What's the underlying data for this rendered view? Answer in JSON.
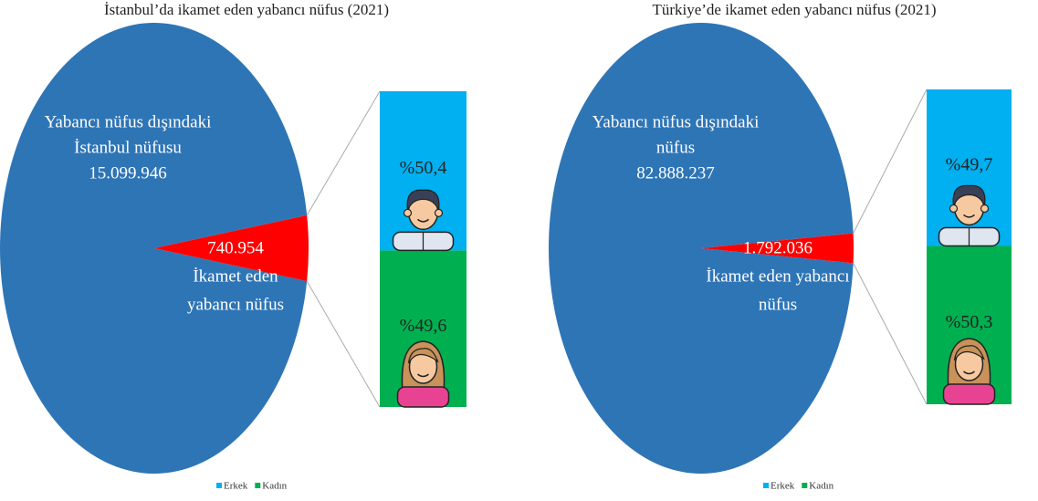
{
  "chart_data": [
    {
      "type": "pie",
      "title": "İstanbul’da ikamet eden yabancı nüfus (2021)",
      "labels": [
        [
          "Yabancı nüfus dışındaki",
          "İstanbul nüfusu"
        ],
        [
          "İkamet eden",
          "yabancı nüfus"
        ]
      ],
      "values": [
        15099946,
        740954
      ],
      "value_labels": [
        "15.099.946",
        "740.954"
      ],
      "colors": [
        "#2e75b6",
        "#ff0000"
      ],
      "breakdown": {
        "type": "bar",
        "series": [
          {
            "name": "Erkek",
            "color": "#00b0f0",
            "values": [
              50.4
            ],
            "value_labels": [
              "%50,4"
            ]
          },
          {
            "name": "Kadın",
            "color": "#00b050",
            "values": [
              49.6
            ],
            "value_labels": [
              "%49,6"
            ]
          }
        ]
      }
    },
    {
      "type": "pie",
      "title": "Türkiye’de ikamet eden yabancı nüfus (2021)",
      "labels": [
        [
          "Yabancı nüfus dışındaki",
          "nüfus"
        ],
        [
          "İkamet eden yabancı",
          "nüfus"
        ]
      ],
      "values": [
        82888237,
        1792036
      ],
      "value_labels": [
        "82.888.237",
        "1.792.036"
      ],
      "colors": [
        "#2e75b6",
        "#ff0000"
      ],
      "breakdown": {
        "type": "bar",
        "series": [
          {
            "name": "Erkek",
            "color": "#00b0f0",
            "values": [
              49.7
            ],
            "value_labels": [
              "%49,7"
            ]
          },
          {
            "name": "Kadın",
            "color": "#00b050",
            "values": [
              50.3
            ],
            "value_labels": [
              "%50,3"
            ]
          }
        ]
      }
    }
  ]
}
